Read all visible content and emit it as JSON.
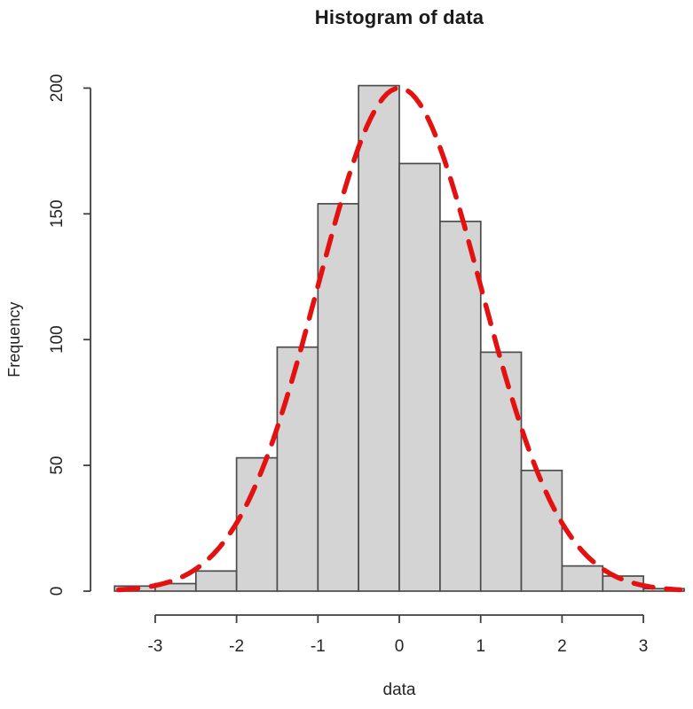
{
  "title": "Histogram of data",
  "colors": {
    "background": "#ffffff",
    "bar_fill": "#d4d4d4",
    "bar_border": "#4c4c4c",
    "axis": "#3f3f3f",
    "tick_text": "#252525",
    "title_text": "#1b1b1b",
    "curve": "#e41111"
  },
  "chart_data": {
    "type": "bar",
    "subtype": "histogram",
    "title": "Histogram of data",
    "xlabel": "data",
    "ylabel": "Frequency",
    "bin_edges": [
      -3.5,
      -3.0,
      -2.5,
      -2.0,
      -1.5,
      -1.0,
      -0.5,
      0.0,
      0.5,
      1.0,
      1.5,
      2.0,
      2.5,
      3.0,
      3.5
    ],
    "values": [
      2,
      3,
      8,
      53,
      97,
      154,
      201,
      170,
      147,
      95,
      48,
      10,
      6,
      1
    ],
    "x_ticks": [
      -3,
      -2,
      -1,
      0,
      1,
      2,
      3
    ],
    "y_ticks": [
      0,
      50,
      100,
      150,
      200
    ],
    "xlim": [
      -3.5,
      3.5
    ],
    "ylim": [
      0,
      200
    ],
    "grid": false,
    "legend": null,
    "overlay_curve": {
      "name": "normal-density-curve",
      "shape": "gaussian",
      "mean": 0,
      "sd": 1,
      "peak": 200,
      "line_style": "dashed",
      "color": "#e41111"
    }
  }
}
